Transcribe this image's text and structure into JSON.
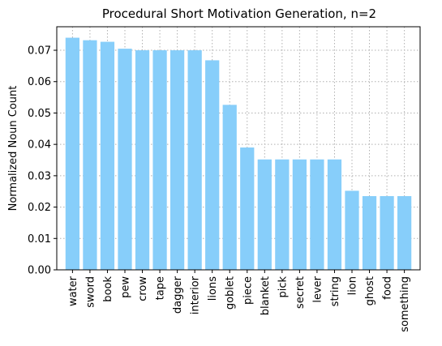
{
  "chart_data": {
    "type": "bar",
    "title": "Procedural Short Motivation Generation, n=2",
    "xlabel": "",
    "ylabel": "Normalized Noun Count",
    "ylim": [
      0,
      0.0775
    ],
    "yticks": [
      "0.00",
      "0.01",
      "0.02",
      "0.03",
      "0.04",
      "0.05",
      "0.06",
      "0.07"
    ],
    "grid": true,
    "bar_color": "#87cefa",
    "categories": [
      "water",
      "sword",
      "book",
      "pew",
      "crow",
      "tape",
      "dagger",
      "interior",
      "lions",
      "goblet",
      "piece",
      "blanket",
      "pick",
      "secret",
      "lever",
      "string",
      "lion",
      "ghost",
      "food",
      "something"
    ],
    "values": [
      0.074,
      0.0732,
      0.0727,
      0.0705,
      0.07,
      0.07,
      0.07,
      0.07,
      0.0668,
      0.0526,
      0.039,
      0.0352,
      0.0352,
      0.0352,
      0.0352,
      0.0352,
      0.0252,
      0.0235,
      0.0235,
      0.0235
    ]
  }
}
